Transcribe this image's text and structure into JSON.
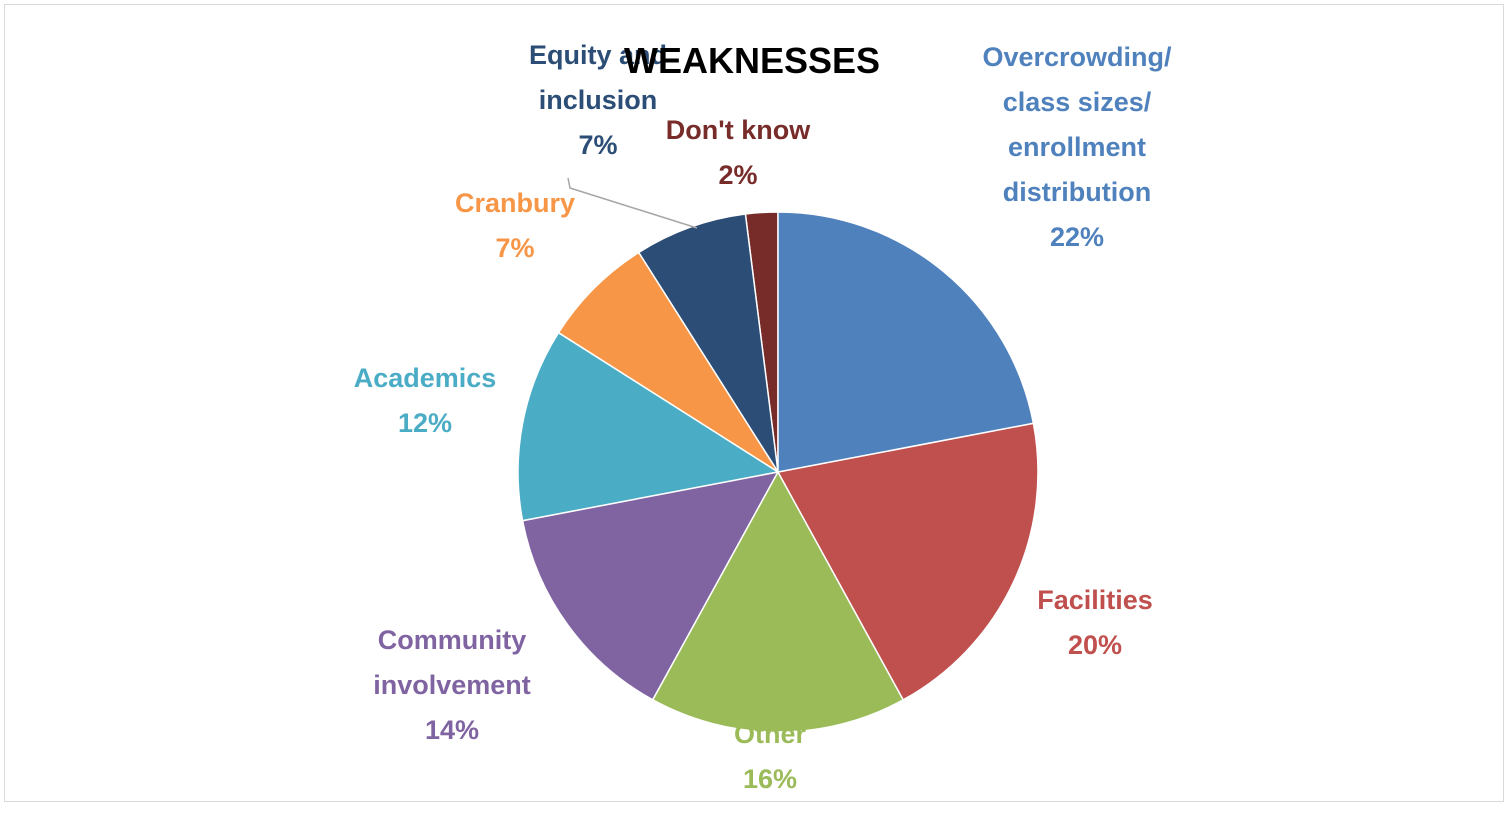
{
  "chart_data": {
    "type": "pie",
    "title": "WEAKNESSES",
    "categories": [
      "Overcrowding/ class sizes/ enrollment distribution",
      "Facilities",
      "Other",
      "Community involvement",
      "Academics",
      "Cranbury",
      "Equity and inclusion",
      "Don't know"
    ],
    "values": [
      22,
      20,
      16,
      14,
      12,
      7,
      7,
      2
    ],
    "value_labels": [
      "22%",
      "20%",
      "16%",
      "14%",
      "12%",
      "7%",
      "7%",
      "2%"
    ],
    "colors": [
      "#4f81bd",
      "#c0504d",
      "#9bbb59",
      "#8064a2",
      "#4bacc6",
      "#f79646",
      "#2c4d75",
      "#772c2a"
    ]
  }
}
